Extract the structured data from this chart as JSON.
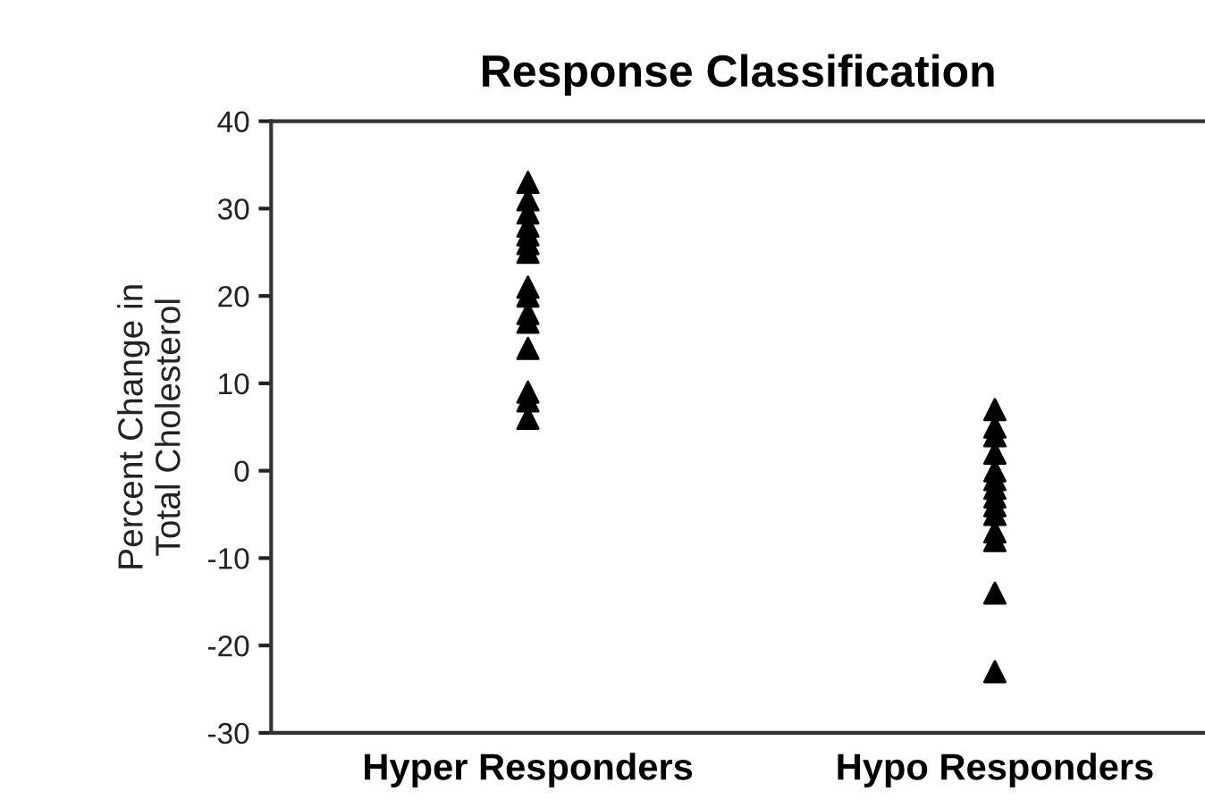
{
  "chart_data": {
    "type": "scatter",
    "title": "Response Classification",
    "ylabel": "Percent Change in\nTotal Cholesterol",
    "categories": [
      "Hyper Responders",
      "Hypo Responders"
    ],
    "series": [
      {
        "color": "#000000",
        "x": [
          "Hyper Responders",
          "Hyper Responders",
          "Hyper Responders",
          "Hyper Responders",
          "Hyper Responders",
          "Hyper Responders",
          "Hyper Responders",
          "Hyper Responders",
          "Hyper Responders",
          "Hyper Responders",
          "Hyper Responders",
          "Hyper Responders",
          "Hyper Responders",
          "Hyper Responders",
          "Hyper Responders"
        ],
        "values": [
          33,
          31,
          29.5,
          28,
          27,
          26,
          25,
          21,
          20,
          18,
          17,
          14,
          9,
          8,
          6
        ]
      },
      {
        "color": "#000000",
        "x": [
          "Hypo Responders",
          "Hypo Responders",
          "Hypo Responders",
          "Hypo Responders",
          "Hypo Responders",
          "Hypo Responders",
          "Hypo Responders",
          "Hypo Responders",
          "Hypo Responders",
          "Hypo Responders",
          "Hypo Responders",
          "Hypo Responders",
          "Hypo Responders",
          "Hypo Responders"
        ],
        "values": [
          7,
          5,
          4,
          2,
          0,
          -1,
          -2,
          -3,
          -4,
          -5,
          -7,
          -8,
          -14,
          -23
        ]
      }
    ],
    "ylim": [
      -30,
      40
    ],
    "yticks": [
      -30,
      -20,
      -10,
      0,
      10,
      20,
      30,
      40
    ],
    "marker": "triangle",
    "grid": false,
    "legend": false
  }
}
